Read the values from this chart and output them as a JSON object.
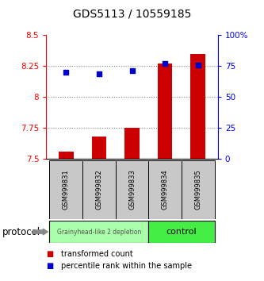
{
  "title": "GDS5113 / 10559185",
  "samples": [
    "GSM999831",
    "GSM999832",
    "GSM999833",
    "GSM999834",
    "GSM999835"
  ],
  "transformed_counts": [
    7.56,
    7.68,
    7.75,
    8.27,
    8.35
  ],
  "percentile_ranks": [
    70,
    69,
    71,
    77,
    76
  ],
  "ylim_left": [
    7.5,
    8.5
  ],
  "ylim_right": [
    0,
    100
  ],
  "yticks_left": [
    7.5,
    7.75,
    8.0,
    8.25,
    8.5
  ],
  "ytick_labels_left": [
    "7.5",
    "7.75",
    "8",
    "8.25",
    "8.5"
  ],
  "yticks_right": [
    0,
    25,
    50,
    75,
    100
  ],
  "ytick_labels_right": [
    "0",
    "25",
    "50",
    "75",
    "100%"
  ],
  "bar_color": "#cc0000",
  "dot_color": "#0000cc",
  "bar_bottom": 7.5,
  "group1_samples": [
    0,
    1,
    2
  ],
  "group2_samples": [
    3,
    4
  ],
  "group1_label": "Grainyhead-like 2 depletion",
  "group2_label": "control",
  "group1_color": "#aaffaa",
  "group2_color": "#44ee44",
  "protocol_label": "protocol",
  "legend_bar_label": "transformed count",
  "legend_dot_label": "percentile rank within the sample",
  "background_color": "#ffffff",
  "tick_box_color": "#c8c8c8",
  "dotted_line_color": "#888888"
}
